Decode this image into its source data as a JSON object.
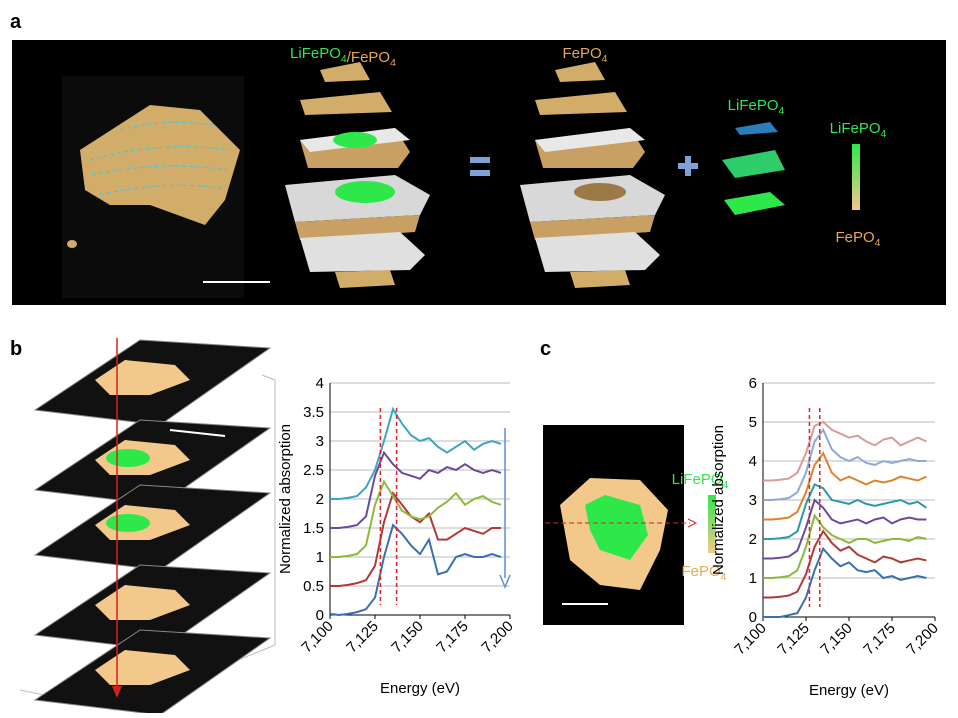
{
  "chart_data": [
    {
      "type": "line",
      "x_label": "Energy (eV)",
      "y_label": "Normalized absorption",
      "x": [
        7100,
        7105,
        7110,
        7115,
        7120,
        7125,
        7130,
        7135,
        7140,
        7145,
        7150,
        7155,
        7160,
        7165,
        7170,
        7175,
        7180,
        7185,
        7190,
        7195
      ],
      "xlim": [
        7100,
        7200
      ],
      "xticks": [
        {
          "value": 7100,
          "label": "7,100"
        },
        {
          "value": 7125,
          "label": "7,125"
        },
        {
          "value": 7150,
          "label": "7,150"
        },
        {
          "value": 7175,
          "label": "7,175"
        },
        {
          "value": 7200,
          "label": "7,200"
        }
      ],
      "ylim": [
        0,
        4
      ],
      "yticks": [
        0,
        0.5,
        1,
        1.5,
        2,
        2.5,
        3,
        3.5,
        4
      ],
      "grid": true,
      "markers": [
        7128,
        7137
      ],
      "series": [
        {
          "color": "#3a6fb0",
          "values": [
            0.02,
            0,
            0.02,
            0.05,
            0.1,
            0.3,
            1.0,
            1.55,
            1.4,
            1.2,
            1.05,
            1.3,
            0.7,
            0.75,
            1.0,
            1.05,
            1.0,
            1.0,
            1.05,
            1.0
          ]
        },
        {
          "color": "#b03a3a",
          "values": [
            0.5,
            0.5,
            0.52,
            0.55,
            0.6,
            0.85,
            1.6,
            2.1,
            1.9,
            1.7,
            1.6,
            1.75,
            1.3,
            1.3,
            1.4,
            1.5,
            1.45,
            1.4,
            1.5,
            1.5
          ]
        },
        {
          "color": "#8db83a",
          "values": [
            1.0,
            1.0,
            1.02,
            1.05,
            1.2,
            1.9,
            2.3,
            2.05,
            1.8,
            1.7,
            1.65,
            1.7,
            1.85,
            1.95,
            2.1,
            1.9,
            2.0,
            2.05,
            1.95,
            1.9
          ]
        },
        {
          "color": "#6b4a9a",
          "values": [
            1.5,
            1.5,
            1.52,
            1.55,
            1.7,
            2.4,
            2.8,
            2.6,
            2.45,
            2.4,
            2.35,
            2.5,
            2.45,
            2.55,
            2.5,
            2.6,
            2.5,
            2.45,
            2.5,
            2.45
          ]
        },
        {
          "color": "#3aa6c2",
          "values": [
            2.0,
            2.0,
            2.02,
            2.05,
            2.2,
            2.5,
            3.0,
            3.55,
            3.3,
            3.1,
            3.0,
            3.05,
            2.9,
            2.8,
            2.9,
            3.0,
            2.85,
            2.95,
            3.0,
            2.95
          ]
        }
      ]
    },
    {
      "type": "line",
      "x_label": "Energy (eV)",
      "y_label": "Normalized absorption",
      "x": [
        7100,
        7105,
        7110,
        7115,
        7120,
        7125,
        7130,
        7135,
        7140,
        7145,
        7150,
        7155,
        7160,
        7165,
        7170,
        7175,
        7180,
        7185,
        7190,
        7195
      ],
      "xlim": [
        7100,
        7200
      ],
      "xticks": [
        {
          "value": 7100,
          "label": "7,100"
        },
        {
          "value": 7125,
          "label": "7,125"
        },
        {
          "value": 7150,
          "label": "7,150"
        },
        {
          "value": 7175,
          "label": "7,175"
        },
        {
          "value": 7200,
          "label": "7,200"
        }
      ],
      "ylim": [
        0,
        6
      ],
      "yticks": [
        0,
        1,
        2,
        3,
        4,
        5,
        6
      ],
      "grid": true,
      "markers": [
        7127,
        7133
      ],
      "series": [
        {
          "color": "#3a6fb0",
          "values": [
            0,
            0,
            0,
            0.05,
            0.1,
            0.5,
            1.2,
            1.75,
            1.5,
            1.3,
            1.4,
            1.2,
            1.15,
            1.2,
            1.0,
            1.05,
            0.95,
            1.0,
            1.05,
            1.0
          ]
        },
        {
          "color": "#b03a3a",
          "values": [
            0.5,
            0.5,
            0.52,
            0.55,
            0.65,
            1.1,
            1.8,
            2.2,
            1.9,
            1.7,
            1.8,
            1.6,
            1.5,
            1.4,
            1.55,
            1.5,
            1.4,
            1.45,
            1.5,
            1.45
          ]
        },
        {
          "color": "#8db83a",
          "values": [
            1.0,
            1.0,
            1.02,
            1.05,
            1.2,
            1.8,
            2.6,
            2.3,
            2.1,
            2.0,
            1.9,
            2.0,
            2.0,
            1.9,
            1.95,
            2.0,
            2.0,
            1.95,
            2.05,
            2.0
          ]
        },
        {
          "color": "#6b4a9a",
          "values": [
            1.5,
            1.5,
            1.52,
            1.55,
            1.7,
            2.3,
            3.0,
            2.8,
            2.5,
            2.4,
            2.45,
            2.5,
            2.4,
            2.5,
            2.55,
            2.4,
            2.5,
            2.55,
            2.5,
            2.5
          ]
        },
        {
          "color": "#2a9aa6",
          "values": [
            2.0,
            2.0,
            2.02,
            2.05,
            2.2,
            2.9,
            3.4,
            3.3,
            3.0,
            2.95,
            2.9,
            3.0,
            2.9,
            2.85,
            2.9,
            2.95,
            3.0,
            2.9,
            2.95,
            2.8
          ]
        },
        {
          "color": "#e0822a",
          "values": [
            2.5,
            2.5,
            2.52,
            2.55,
            2.7,
            3.2,
            3.9,
            4.2,
            3.7,
            3.5,
            3.6,
            3.5,
            3.4,
            3.5,
            3.45,
            3.5,
            3.6,
            3.55,
            3.5,
            3.6
          ]
        },
        {
          "color": "#8fa9d6",
          "values": [
            3.0,
            3.0,
            3.02,
            3.05,
            3.2,
            3.7,
            4.5,
            4.8,
            4.3,
            4.1,
            4.0,
            4.1,
            3.95,
            3.9,
            4.0,
            3.95,
            4.0,
            4.05,
            4.0,
            4.0
          ]
        },
        {
          "color": "#d99a9a",
          "values": [
            3.5,
            3.5,
            3.52,
            3.55,
            3.7,
            4.2,
            4.9,
            5.0,
            4.8,
            4.7,
            4.6,
            4.65,
            4.5,
            4.4,
            4.55,
            4.6,
            4.4,
            4.5,
            4.6,
            4.5
          ]
        }
      ]
    }
  ],
  "panel_a": {
    "label": "a",
    "stack1_title": [
      {
        "base": "LiFePO",
        "sub": "4"
      },
      {
        "base": "/"
      },
      {
        "base": "FePO",
        "sub": "4"
      }
    ],
    "stack2_title": {
      "base": "FePO",
      "sub": "4"
    },
    "pieces_title": {
      "base": "LiFePO",
      "sub": "4"
    },
    "legend_top": {
      "base": "LiFePO",
      "sub": "4"
    },
    "legend_bottom": {
      "base": "FePO",
      "sub": "4"
    }
  },
  "panel_b": {
    "label": "b"
  },
  "panel_c": {
    "label": "c",
    "legend_top": {
      "base": "LiFePO",
      "sub": "4"
    },
    "legend_bottom": {
      "base": "FePO",
      "sub": "4"
    }
  }
}
